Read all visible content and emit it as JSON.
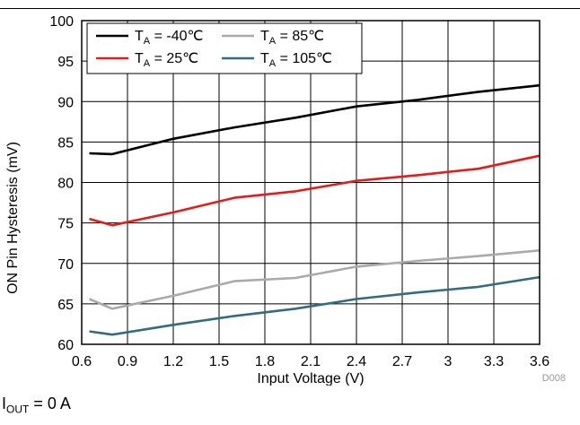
{
  "chart_data": {
    "type": "line",
    "xlabel": "Input Voltage (V)",
    "ylabel": "ON Pin Hysteresis (mV)",
    "xlim": [
      0.6,
      3.6
    ],
    "ylim": [
      60,
      100
    ],
    "xticks": [
      "0.6",
      "0.9",
      "1.2",
      "1.5",
      "1.8",
      "2.1",
      "2.4",
      "2.7",
      "3",
      "3.3",
      "3.6"
    ],
    "yticks": [
      "60",
      "65",
      "70",
      "75",
      "80",
      "85",
      "90",
      "95",
      "100"
    ],
    "grid": true,
    "legend_position": "top-left",
    "figure_code": "D008",
    "series": [
      {
        "name": "TA = -40℃",
        "legend_main": "T",
        "legend_sub": "A",
        "legend_rest": " = -40℃",
        "color": "#000000",
        "x": [
          0.65,
          0.8,
          1.2,
          1.6,
          2.0,
          2.4,
          2.8,
          3.2,
          3.6
        ],
        "y": [
          83.6,
          83.5,
          85.4,
          86.8,
          88.0,
          89.4,
          90.2,
          91.2,
          92.0
        ]
      },
      {
        "name": "TA = 25℃",
        "legend_main": "T",
        "legend_sub": "A",
        "legend_rest": " = 25℃",
        "color": "#e31c1c",
        "x": [
          0.65,
          0.8,
          1.2,
          1.6,
          2.0,
          2.4,
          2.8,
          3.2,
          3.6
        ],
        "y": [
          75.5,
          74.7,
          76.3,
          78.1,
          78.9,
          80.2,
          80.9,
          81.7,
          83.3
        ]
      },
      {
        "name": "TA = 85℃",
        "legend_main": "T",
        "legend_sub": "A",
        "legend_rest": " = 85℃",
        "color": "#aaaaaa",
        "x": [
          0.65,
          0.8,
          1.2,
          1.6,
          2.0,
          2.4,
          2.8,
          3.2,
          3.6
        ],
        "y": [
          65.6,
          64.4,
          66.0,
          67.8,
          68.2,
          69.6,
          70.3,
          70.9,
          71.6
        ]
      },
      {
        "name": "TA = 105℃",
        "legend_main": "T",
        "legend_sub": "A",
        "legend_rest": " = 105℃",
        "color": "#336b7f",
        "x": [
          0.65,
          0.8,
          1.2,
          1.6,
          2.0,
          2.4,
          2.8,
          3.2,
          3.6
        ],
        "y": [
          61.6,
          61.2,
          62.4,
          63.5,
          64.4,
          65.6,
          66.4,
          67.1,
          68.3
        ]
      }
    ]
  },
  "footnote": {
    "main": "I",
    "sub": "OUT",
    "rest": " = 0 A"
  }
}
